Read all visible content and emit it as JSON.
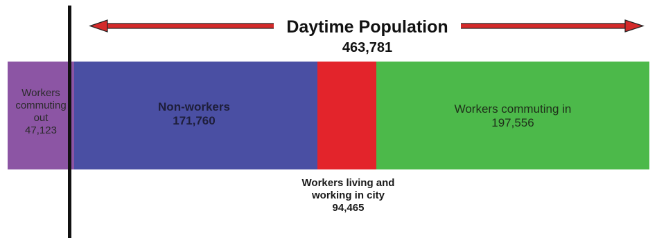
{
  "title": "Daytime Population",
  "total": "463,781",
  "segments": {
    "commuting_out": {
      "lines": [
        "Workers",
        "commuting",
        "out"
      ],
      "value": "47,123",
      "color": "#8c55a4"
    },
    "non_workers": {
      "label": "Non-workers",
      "value": "171,760",
      "color": "#4a4fa3"
    },
    "living_working": {
      "lines": [
        "Workers living and",
        "working in city"
      ],
      "value": "94,465",
      "color": "#e3242b"
    },
    "commuting_in": {
      "label": "Workers commuting in",
      "value": "197,556",
      "color": "#4cb94a"
    }
  },
  "arrow_color": "#d42a2a"
}
